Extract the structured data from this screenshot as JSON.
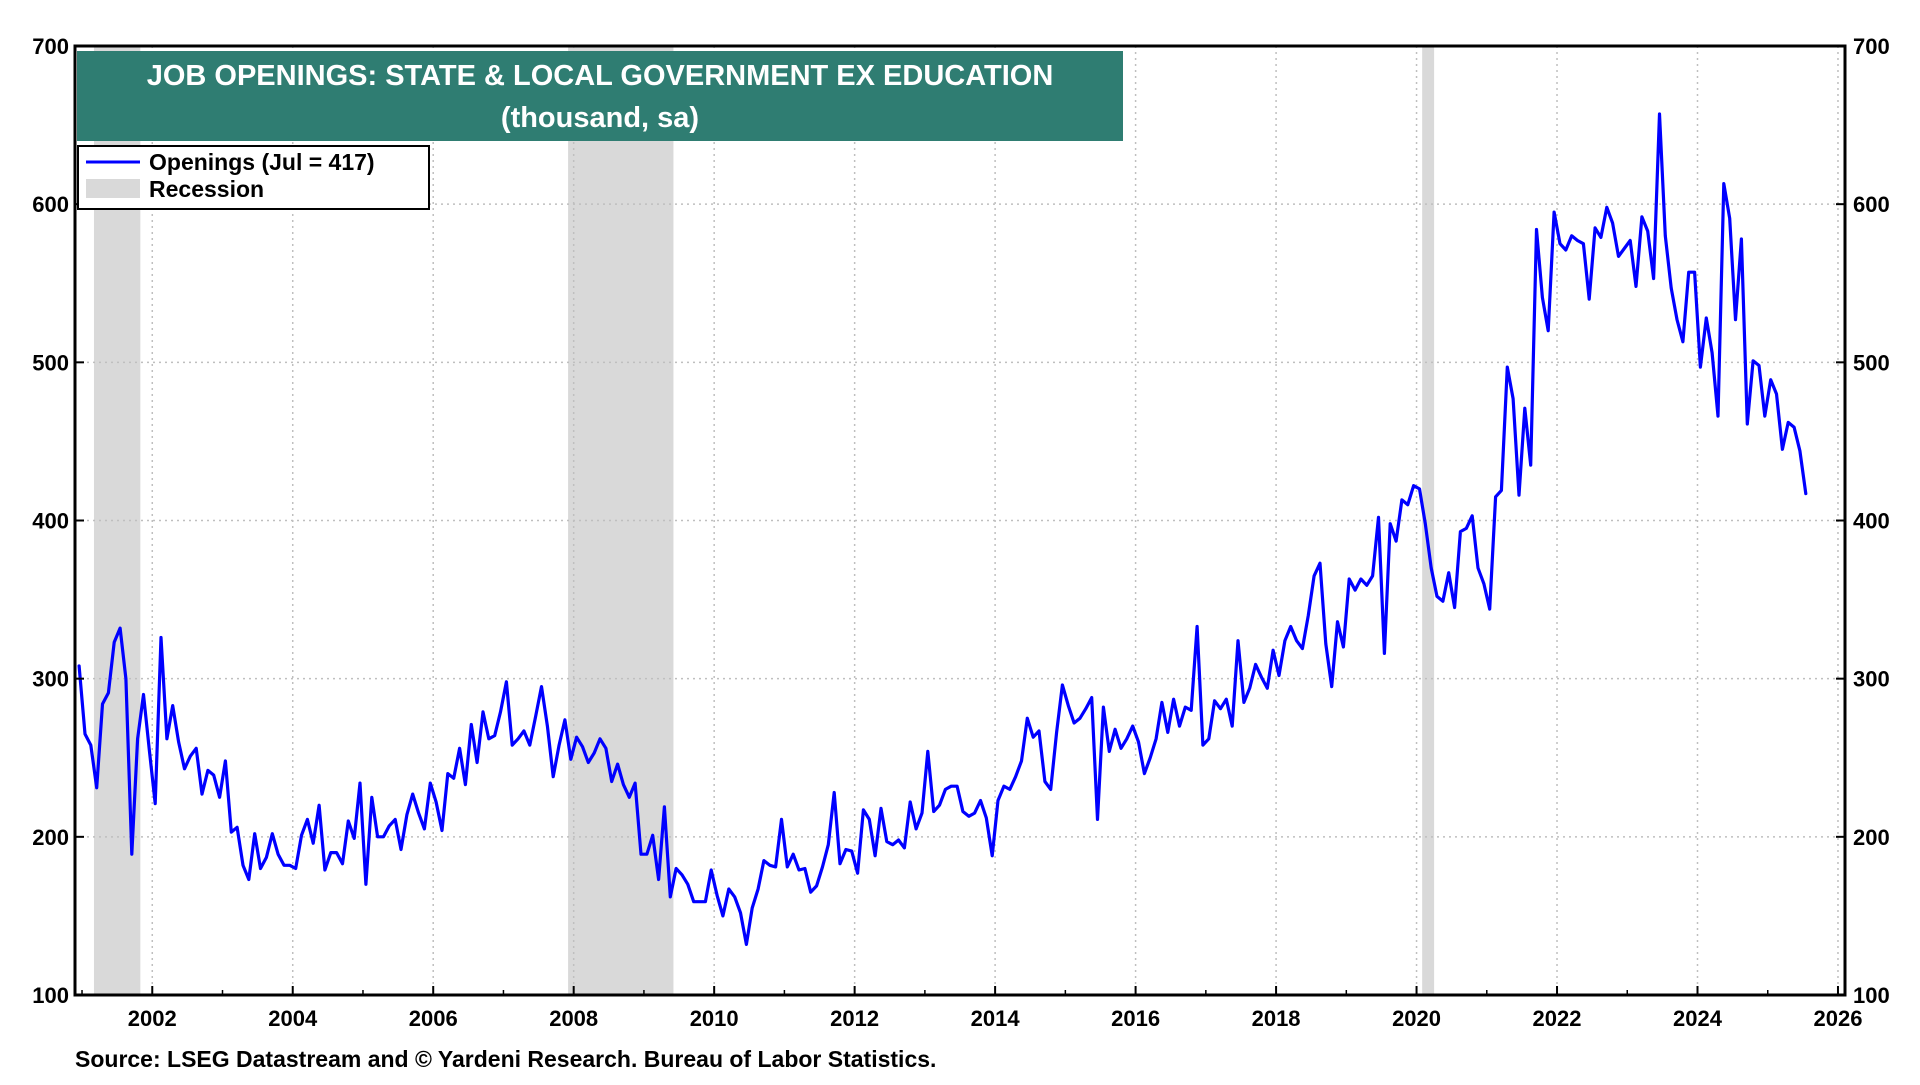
{
  "chart_data": {
    "type": "line",
    "title": "JOB OPENINGS: STATE & LOCAL GOVERNMENT EX EDUCATION",
    "subtitle": "(thousand, sa)",
    "source": "Source: LSEG Datastream and © Yardeni Research. Bureau of Labor Statistics.",
    "legend": {
      "placement": "top-left",
      "entries": [
        {
          "label": "Openings (Jul = 417)",
          "kind": "line",
          "color": "#0000ff"
        },
        {
          "label": "Recession",
          "kind": "band",
          "color": "#d9d9d9"
        }
      ]
    },
    "xlim": [
      2000.9,
      2026.1
    ],
    "ylim": [
      100,
      700
    ],
    "x_ticks": [
      "2002",
      "2004",
      "2006",
      "2008",
      "2010",
      "2012",
      "2014",
      "2016",
      "2018",
      "2020",
      "2022",
      "2024",
      "2026"
    ],
    "y_ticks": [
      "100",
      "200",
      "300",
      "400",
      "500",
      "600",
      "700"
    ],
    "grid": true,
    "recessions": [
      {
        "start": 2001.17,
        "end": 2001.83
      },
      {
        "start": 2007.92,
        "end": 2009.42
      },
      {
        "start": 2020.08,
        "end": 2020.25
      }
    ],
    "series": [
      {
        "name": "Openings (Jul = 417)",
        "color": "#0000ff",
        "start": "2000-12",
        "frequency": "monthly",
        "values": [
          308,
          265,
          258,
          231,
          284,
          291,
          323,
          332,
          300,
          189,
          262,
          290,
          255,
          221,
          326,
          262,
          283,
          260,
          243,
          251,
          256,
          227,
          242,
          239,
          225,
          248,
          203,
          206,
          182,
          173,
          202,
          180,
          187,
          202,
          189,
          182,
          182,
          180,
          201,
          211,
          196,
          220,
          179,
          190,
          190,
          183,
          210,
          199,
          234,
          170,
          225,
          200,
          200,
          207,
          211,
          192,
          214,
          227,
          215,
          205,
          234,
          222,
          204,
          240,
          237,
          256,
          233,
          271,
          247,
          279,
          262,
          264,
          279,
          298,
          258,
          262,
          267,
          258,
          276,
          295,
          270,
          238,
          258,
          274,
          249,
          263,
          257,
          247,
          253,
          262,
          256,
          235,
          246,
          233,
          225,
          234,
          189,
          189,
          201,
          173,
          219,
          162,
          180,
          176,
          170,
          159,
          159,
          159,
          179,
          163,
          150,
          167,
          162,
          152,
          132,
          155,
          167,
          185,
          182,
          181,
          211,
          181,
          189,
          179,
          180,
          165,
          169,
          181,
          195,
          228,
          183,
          192,
          191,
          177,
          217,
          211,
          188,
          218,
          197,
          195,
          198,
          193,
          222,
          205,
          215,
          254,
          216,
          220,
          230,
          232,
          232,
          216,
          213,
          215,
          223,
          212,
          188,
          223,
          232,
          230,
          238,
          248,
          275,
          263,
          267,
          235,
          230,
          266,
          296,
          283,
          272,
          275,
          281,
          288,
          211,
          282,
          254,
          268,
          256,
          262,
          270,
          260,
          240,
          250,
          262,
          285,
          266,
          287,
          270,
          282,
          280,
          333,
          258,
          262,
          286,
          281,
          287,
          270,
          324,
          285,
          294,
          309,
          301,
          294,
          318,
          302,
          324,
          333,
          324,
          319,
          340,
          365,
          373,
          322,
          295,
          336,
          320,
          363,
          356,
          363,
          359,
          365,
          402,
          316,
          398,
          387,
          413,
          410,
          422,
          420,
          398,
          370,
          352,
          349,
          367,
          345,
          393,
          395,
          403,
          370,
          360,
          344,
          415,
          419,
          497,
          477,
          416,
          471,
          435,
          584,
          541,
          520,
          595,
          575,
          571,
          580,
          577,
          575,
          540,
          585,
          579,
          598,
          588,
          567,
          572,
          577,
          548,
          592,
          583,
          553,
          657,
          580,
          547,
          527,
          513,
          557,
          557,
          497,
          528,
          506,
          466,
          613,
          591,
          527,
          578,
          461,
          501,
          498,
          466,
          489,
          480,
          445,
          462,
          459,
          444,
          417
        ]
      }
    ]
  }
}
